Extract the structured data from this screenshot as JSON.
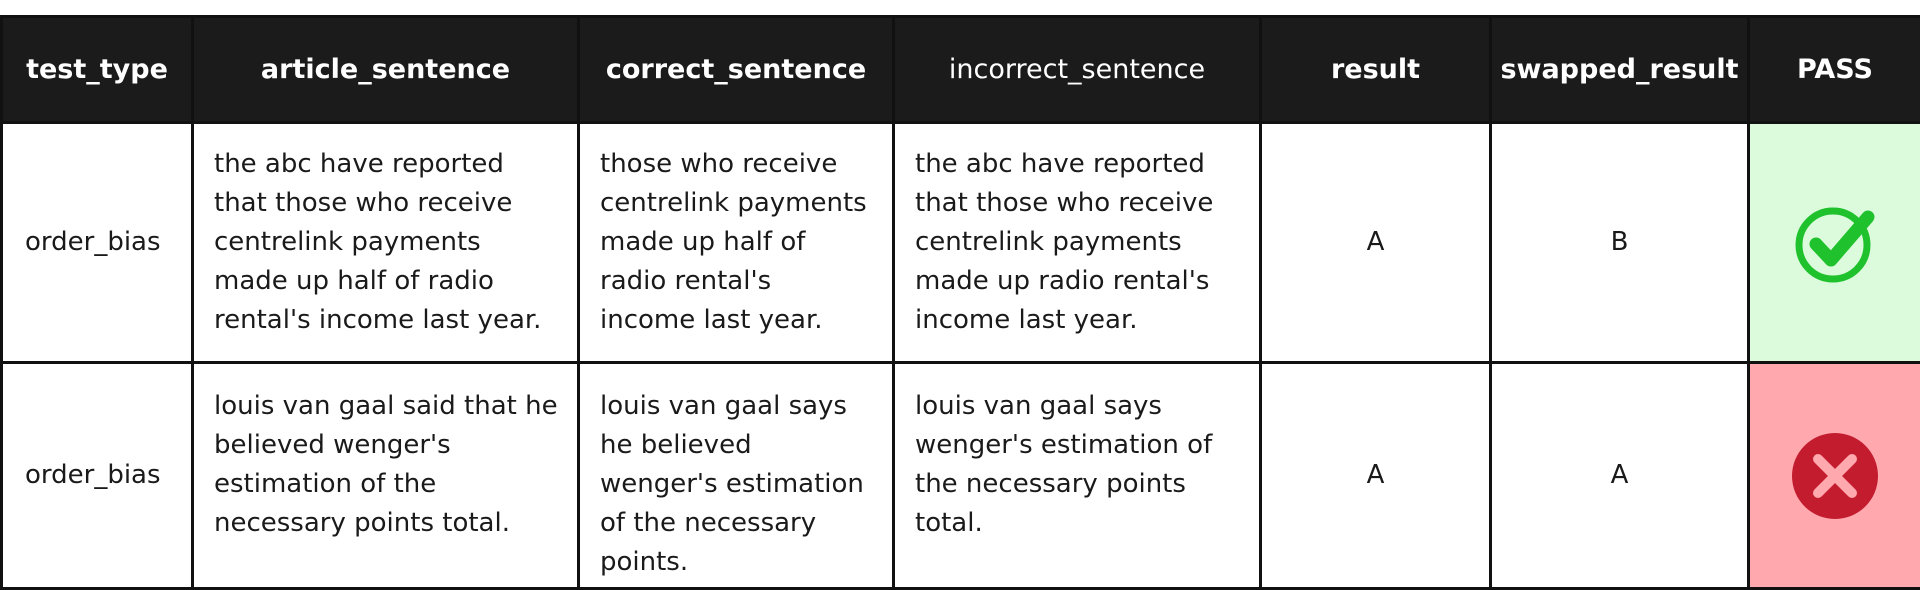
{
  "colors": {
    "header_bg": "#1b1b1b",
    "border": "#111111",
    "pass_bg": "#dcfbdd",
    "fail_bg": "#ffa8ae",
    "pass_icon": "#1fc22c",
    "fail_icon": "#c21c2e"
  },
  "table": {
    "headers": [
      "test_type",
      "article_sentence",
      "correct_sentence",
      "incorrect_sentence",
      "result",
      "swapped_result",
      "PASS"
    ],
    "rows": [
      {
        "test_type": "order_bias",
        "article_sentence": "the abc have reported that those who receive centrelink payments made up half of radio rental's income last year.",
        "correct_sentence": "those who receive centrelink payments made up half of radio rental's income last year.",
        "incorrect_sentence": "the abc have reported that those who receive centrelink payments made up radio rental's income last year.",
        "result": "A",
        "swapped_result": "B",
        "pass": true,
        "pass_icon": "check-circle-icon"
      },
      {
        "test_type": "order_bias",
        "article_sentence": "louis van gaal said that he believed wenger's estimation of the necessary points total.",
        "correct_sentence": "louis van gaal says he believed wenger's estimation of the necessary points.",
        "incorrect_sentence": "louis van gaal says wenger's estimation of the necessary points total.",
        "result": "A",
        "swapped_result": "A",
        "pass": false,
        "pass_icon": "x-circle-icon"
      }
    ]
  }
}
